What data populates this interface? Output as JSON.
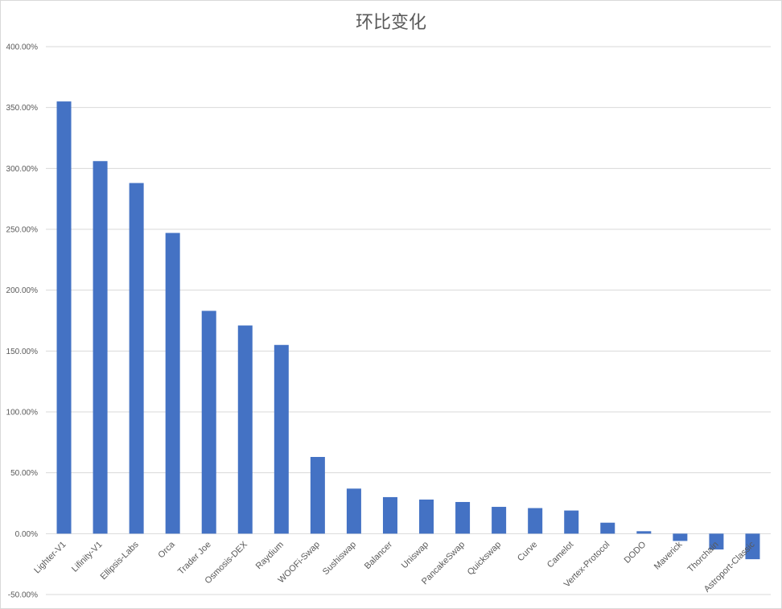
{
  "chart_data": {
    "type": "bar",
    "title": "环比变化",
    "xlabel": "",
    "ylabel": "",
    "ylim": [
      -50,
      400
    ],
    "ytick_step": 50,
    "ytick_labels": [
      "-50.00%",
      "0.00%",
      "50.00%",
      "100.00%",
      "150.00%",
      "200.00%",
      "250.00%",
      "300.00%",
      "350.00%",
      "400.00%"
    ],
    "grid": true,
    "legend": "none",
    "bar_color": "#4472C4",
    "categories": [
      "Lighter-V1",
      "Lifinity-V1",
      "Ellipsis-Labs",
      "Orca",
      "Trader Joe",
      "Osmosis-DEX",
      "Raydium",
      "WOOFi-Swap",
      "Sushiswap",
      "Balancer",
      "Uniswap",
      "PancakeSwap",
      "Quickswap",
      "Curve",
      "Camelot",
      "Vertex-Protocol",
      "DODO",
      "Maverick",
      "Thorchain",
      "Astroport-Classic"
    ],
    "values": [
      355,
      306,
      288,
      247,
      183,
      171,
      155,
      63,
      37,
      30,
      28,
      26,
      22,
      21,
      19,
      9,
      2,
      -6,
      -13,
      -21
    ]
  }
}
